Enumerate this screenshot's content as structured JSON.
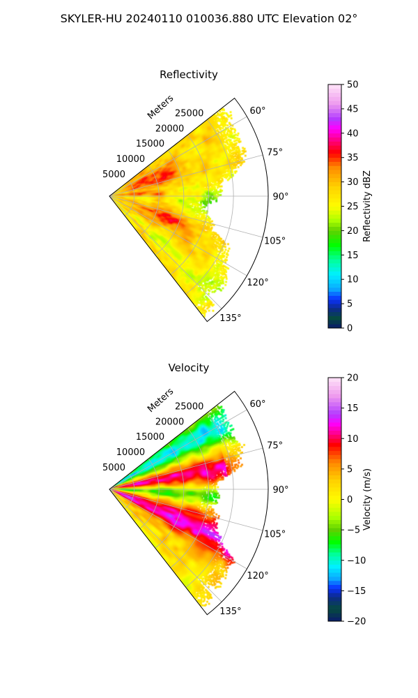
{
  "suptitle": "SKYLER-HU  20240110  010036.880 UTC Elevation 02°",
  "chart_data": [
    {
      "type": "heatmap",
      "projection": "polar-sector",
      "title": "Reflectivity",
      "radial_axis_label": "Meters",
      "radial_ticks": [
        "5000",
        "10000",
        "15000",
        "20000",
        "25000"
      ],
      "radial_tick_values": [
        5000,
        10000,
        15000,
        20000,
        25000
      ],
      "azimuth_ticks": [
        "60°",
        "75°",
        "90°",
        "105°",
        "120°",
        "135°"
      ],
      "azimuth_tick_values": [
        60,
        75,
        90,
        105,
        120,
        135
      ],
      "azimuth_range_deg": [
        52,
        142
      ],
      "range_max_m": 32000,
      "grid": true,
      "colorbar": {
        "label": "Reflectivity dBZ",
        "range": [
          0,
          50
        ],
        "ticks": [
          "0",
          "5",
          "10",
          "15",
          "20",
          "25",
          "30",
          "35",
          "40",
          "45",
          "50"
        ],
        "tick_values": [
          0,
          5,
          10,
          15,
          20,
          25,
          30,
          35,
          40,
          45,
          50
        ],
        "stops": [
          {
            "v": 0,
            "c": "#0b1a6b"
          },
          {
            "v": 2,
            "c": "#064a3e"
          },
          {
            "v": 4,
            "c": "#0d2a8a"
          },
          {
            "v": 6,
            "c": "#0a33ff"
          },
          {
            "v": 8,
            "c": "#0aa8ff"
          },
          {
            "v": 11,
            "c": "#00f0ff"
          },
          {
            "v": 14,
            "c": "#00ff9a"
          },
          {
            "v": 17,
            "c": "#00ff00"
          },
          {
            "v": 20,
            "c": "#5fd000"
          },
          {
            "v": 22,
            "c": "#a8ff00"
          },
          {
            "v": 25,
            "c": "#fffc00"
          },
          {
            "v": 29,
            "c": "#ffd200"
          },
          {
            "v": 33,
            "c": "#ff8a00"
          },
          {
            "v": 36,
            "c": "#ff0000"
          },
          {
            "v": 39,
            "c": "#ff0099"
          },
          {
            "v": 41,
            "c": "#ff00ff"
          },
          {
            "v": 43,
            "c": "#b23cff"
          },
          {
            "v": 46,
            "c": "#ee9aee"
          },
          {
            "v": 50,
            "c": "#ffe4f8"
          }
        ]
      },
      "data_summary": "Echoes mostly 22-37 dBZ; strongest (35-45 dBZ, red/magenta) within ~12 km along 60-80° and 100-120°; weaker (20-27 dBZ, yellow/green) near 90° at 15-28 km."
    },
    {
      "type": "heatmap",
      "projection": "polar-sector",
      "title": "Velocity",
      "radial_axis_label": "Meters",
      "radial_ticks": [
        "5000",
        "10000",
        "15000",
        "20000",
        "25000"
      ],
      "radial_tick_values": [
        5000,
        10000,
        15000,
        20000,
        25000
      ],
      "azimuth_ticks": [
        "60°",
        "75°",
        "90°",
        "105°",
        "120°",
        "135°"
      ],
      "azimuth_tick_values": [
        60,
        75,
        90,
        105,
        120,
        135
      ],
      "azimuth_range_deg": [
        52,
        142
      ],
      "range_max_m": 32000,
      "grid": true,
      "colorbar": {
        "label": "Velocity (m/s)",
        "range": [
          -20,
          20
        ],
        "ticks": [
          "−20",
          "−15",
          "−10",
          "−5",
          "0",
          "5",
          "10",
          "15",
          "20"
        ],
        "tick_values": [
          -20,
          -15,
          -10,
          -5,
          0,
          5,
          10,
          15,
          20
        ],
        "stops": [
          {
            "v": -20,
            "c": "#0b1a6b"
          },
          {
            "v": -18,
            "c": "#064a3e"
          },
          {
            "v": -16,
            "c": "#0d2a8a"
          },
          {
            "v": -14.5,
            "c": "#0a33ff"
          },
          {
            "v": -13,
            "c": "#0aa8ff"
          },
          {
            "v": -11,
            "c": "#00f0ff"
          },
          {
            "v": -9,
            "c": "#00ff9a"
          },
          {
            "v": -7,
            "c": "#00ff00"
          },
          {
            "v": -5,
            "c": "#5fd000"
          },
          {
            "v": -3,
            "c": "#a8ff00"
          },
          {
            "v": 0,
            "c": "#fffc00"
          },
          {
            "v": 3,
            "c": "#ffd200"
          },
          {
            "v": 6,
            "c": "#ff8a00"
          },
          {
            "v": 9,
            "c": "#ff0000"
          },
          {
            "v": 11,
            "c": "#ff0099"
          },
          {
            "v": 12.5,
            "c": "#ff00ff"
          },
          {
            "v": 14,
            "c": "#b23cff"
          },
          {
            "v": 17,
            "c": "#ee9aee"
          },
          {
            "v": 20,
            "c": "#ffe4f8"
          }
        ]
      },
      "data_summary": "Dipole pattern: inbound −8 to −13 m/s (cyan/green) along 52-70° and near 90-100°; outbound +5 to +15 m/s (red/magenta) along 72-88° and 105-125°; near 0 m/s (yellow) at 125-142°."
    }
  ]
}
